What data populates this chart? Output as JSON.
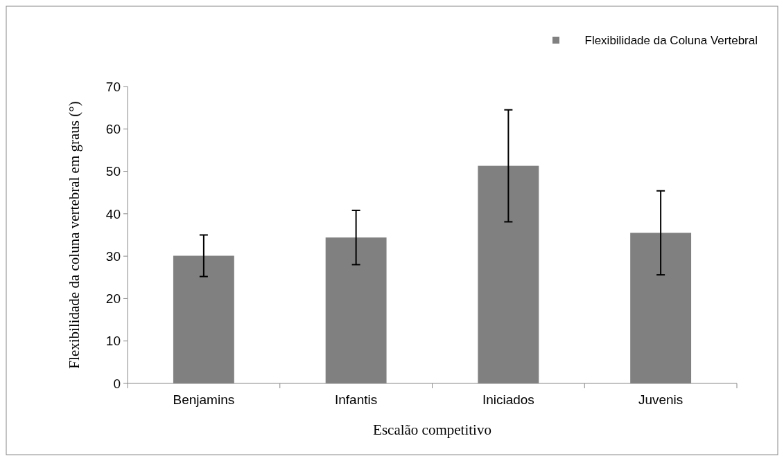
{
  "chart_data": {
    "type": "bar",
    "xlabel": "Escalão competitivo",
    "ylabel": "Flexibilidade da coluna vertebral em graus (°)",
    "categories": [
      "Benjamins",
      "Infantis",
      "Iniciados",
      "Juvenis"
    ],
    "series": [
      {
        "name": "Flexibilidade da Coluna Vertebral",
        "color": "#808080",
        "values": [
          30.1,
          34.4,
          51.3,
          35.5
        ],
        "errors": [
          4.9,
          6.4,
          13.2,
          9.9
        ]
      }
    ],
    "ylim": [
      0,
      70
    ],
    "yticks": [
      0,
      10,
      20,
      30,
      40,
      50,
      60,
      70
    ],
    "grid": false,
    "legend": "top right"
  }
}
